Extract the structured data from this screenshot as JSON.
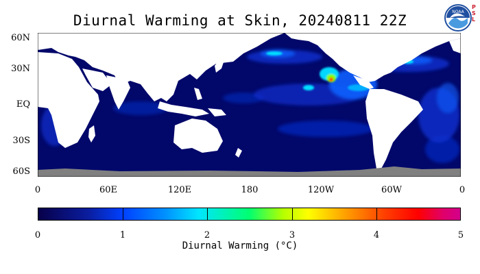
{
  "title": "Diurnal Warming at Skin, 20240811 22Z",
  "logo": {
    "icon": "noaa-logo",
    "side_letters": [
      "P",
      "S",
      "L"
    ],
    "colors": {
      "noaa_blue": "#1f4fa0",
      "psl_red": "#cc2233"
    }
  },
  "map": {
    "lat_labels": [
      "60N",
      "30N",
      "EQ",
      "30S",
      "60S"
    ],
    "lon_labels": [
      "0",
      "60E",
      "120E",
      "180",
      "120W",
      "60W",
      "0"
    ],
    "colors": {
      "ocean": "#02086a",
      "land": "#ffffff",
      "no_data": "#808080"
    }
  },
  "colorbar": {
    "tick_labels": [
      "0",
      "1",
      "2",
      "3",
      "4",
      "5"
    ],
    "title": "Diurnal Warming (°C)",
    "range": [
      0,
      5
    ]
  }
}
